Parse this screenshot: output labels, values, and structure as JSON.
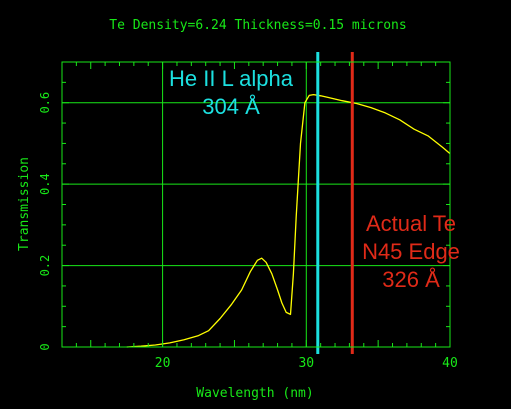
{
  "chart_data": {
    "type": "line",
    "title": "Te Density=6.24 Thickness=0.15 microns",
    "xlabel": "Wavelength (nm)",
    "ylabel": "Transmission",
    "xlim": [
      13,
      40
    ],
    "ylim": [
      0,
      0.7
    ],
    "x_ticks": [
      20,
      30,
      40
    ],
    "y_ticks": [
      0,
      0.2,
      0.4,
      0.6
    ],
    "x_tick_labels": [
      "20",
      "30",
      "40"
    ],
    "y_tick_labels": [
      "0",
      "0.2",
      "0.4",
      "0.6"
    ],
    "grid": true,
    "series": [
      {
        "color": "#ffff00",
        "x": [
          17.5,
          18.5,
          19.5,
          20.5,
          21.5,
          22.5,
          23.2,
          24.0,
          24.8,
          25.5,
          26.1,
          26.6,
          26.9,
          27.2,
          27.6,
          28.0,
          28.3,
          28.6,
          28.9,
          29.1,
          29.3,
          29.6,
          29.9,
          30.2,
          30.5,
          31.0,
          31.5,
          32.5,
          33.5,
          34.5,
          35.5,
          36.5,
          37.5,
          38.5,
          39.5,
          40.0
        ],
        "y": [
          0.0,
          0.002,
          0.005,
          0.01,
          0.018,
          0.028,
          0.04,
          0.07,
          0.105,
          0.14,
          0.185,
          0.213,
          0.218,
          0.208,
          0.18,
          0.14,
          0.108,
          0.085,
          0.08,
          0.18,
          0.32,
          0.5,
          0.6,
          0.618,
          0.62,
          0.617,
          0.613,
          0.605,
          0.598,
          0.588,
          0.575,
          0.558,
          0.535,
          0.518,
          0.49,
          0.475
        ]
      }
    ],
    "markers": [
      {
        "x": 30.8,
        "color": "#1ce0e0",
        "label_lines": [
          "He II L alpha",
          "304 Å"
        ]
      },
      {
        "x": 33.2,
        "color": "#e02a18",
        "label_lines": [
          "Actual Te",
          "N45 Edge",
          "326 Å"
        ]
      }
    ],
    "colors": {
      "background": "#000000",
      "axes": "#18e818",
      "title_text": "#18e818"
    }
  }
}
